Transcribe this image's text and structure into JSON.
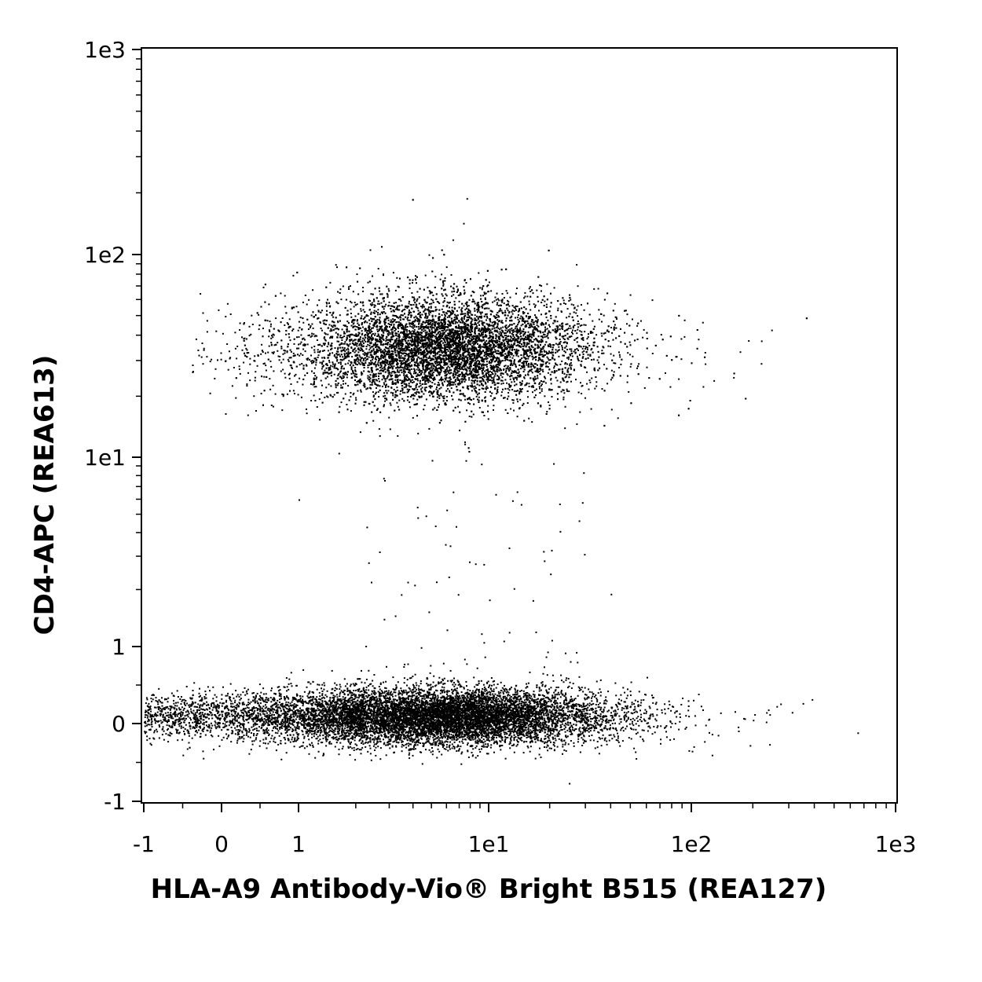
{
  "chart_data": {
    "type": "scatter",
    "title": "",
    "xlabel": "HLA-A9 Antibody-Vio® Bright B515 (REA127)",
    "ylabel": "CD4-APC (REA613)",
    "x_scale": "biexponential",
    "y_scale": "biexponential",
    "xlim": [
      -1,
      1000
    ],
    "ylim": [
      -1,
      1000
    ],
    "x_ticks": [
      {
        "value": -1,
        "label": "-1"
      },
      {
        "value": 0,
        "label": "0"
      },
      {
        "value": 1,
        "label": "1"
      },
      {
        "value": 10,
        "label": "1e1"
      },
      {
        "value": 100,
        "label": "1e2"
      },
      {
        "value": 1000,
        "label": "1e3"
      }
    ],
    "y_ticks": [
      {
        "value": -1,
        "label": "-1"
      },
      {
        "value": 0,
        "label": "0"
      },
      {
        "value": 1,
        "label": "1"
      },
      {
        "value": 10,
        "label": "1e1"
      },
      {
        "value": 100,
        "label": "1e2"
      },
      {
        "value": 1000,
        "label": "1e3"
      }
    ],
    "grid": false,
    "legend": "none",
    "point_color": "#000000",
    "populations": [
      {
        "center_x": 6,
        "center_y": 35,
        "spread_x_decades": 0.35,
        "spread_y_decades": 0.12,
        "relative_density": "high"
      },
      {
        "center_x": 6,
        "center_y": 0.1,
        "spread_x_decades": 0.4,
        "spread_y_linear": 0.18,
        "relative_density": "high"
      }
    ]
  }
}
